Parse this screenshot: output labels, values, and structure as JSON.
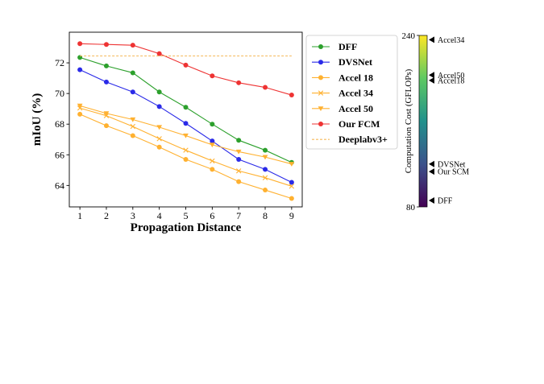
{
  "chart_data": [
    {
      "type": "line",
      "xlabel": "Propagation Distance",
      "ylabel": "mIoU (%)",
      "x": [
        1,
        2,
        3,
        4,
        5,
        6,
        7,
        8,
        9
      ],
      "xlim": [
        0.6,
        9.4
      ],
      "ylim": [
        62.6,
        74.0
      ],
      "yticks": [
        64,
        66,
        68,
        70,
        72
      ],
      "grid": false,
      "legend_position": "outside-right",
      "series": [
        {
          "name": "DFF",
          "color": "#2ca02c",
          "marker": "circle",
          "style": "solid",
          "values": [
            72.35,
            71.8,
            71.35,
            70.1,
            69.1,
            68.0,
            66.95,
            66.3,
            65.5
          ]
        },
        {
          "name": "DVSNet",
          "color": "#2a2ae8",
          "marker": "circle",
          "style": "solid",
          "values": [
            71.55,
            70.75,
            70.1,
            69.15,
            68.05,
            66.9,
            65.7,
            65.05,
            64.2
          ]
        },
        {
          "name": "Accel 18",
          "color": "#ffb130",
          "marker": "circle",
          "style": "solid",
          "values": [
            68.65,
            67.9,
            67.25,
            66.5,
            65.7,
            65.05,
            64.25,
            63.7,
            63.15
          ]
        },
        {
          "name": "Accel 34",
          "color": "#ffb130",
          "marker": "x",
          "style": "solid",
          "values": [
            69.05,
            68.55,
            67.85,
            67.05,
            66.3,
            65.6,
            64.95,
            64.5,
            63.95
          ]
        },
        {
          "name": "Accel 50",
          "color": "#ffb130",
          "marker": "triangle-down",
          "style": "solid",
          "values": [
            69.2,
            68.7,
            68.3,
            67.8,
            67.25,
            66.65,
            66.2,
            65.85,
            65.4
          ]
        },
        {
          "name": "Our FCM",
          "color": "#ee3333",
          "marker": "circle",
          "style": "solid",
          "values": [
            73.25,
            73.2,
            73.15,
            72.6,
            71.85,
            71.15,
            70.7,
            70.4,
            69.9
          ]
        },
        {
          "name": "Deeplabv3+",
          "color": "#f5b95a",
          "marker": "none",
          "style": "dashed",
          "values": [
            72.45,
            72.45,
            72.45,
            72.45,
            72.45,
            72.45,
            72.45,
            72.45,
            72.45
          ]
        }
      ]
    },
    {
      "type": "colorbar",
      "label": "Computation Cost (GFLOPs)",
      "ticks": [
        "240",
        "80"
      ],
      "range": [
        80,
        240
      ],
      "colormap": [
        "#440154",
        "#3b528b",
        "#21918c",
        "#5ec962",
        "#fde725"
      ],
      "markers": [
        {
          "label": "Accel34",
          "value": 236
        },
        {
          "label": "Accel50",
          "value": 203
        },
        {
          "label": "Accel18",
          "value": 198
        },
        {
          "label": "DVSNet",
          "value": 120
        },
        {
          "label": "Our SCM",
          "value": 113
        },
        {
          "label": "DFF",
          "value": 86
        }
      ]
    }
  ]
}
